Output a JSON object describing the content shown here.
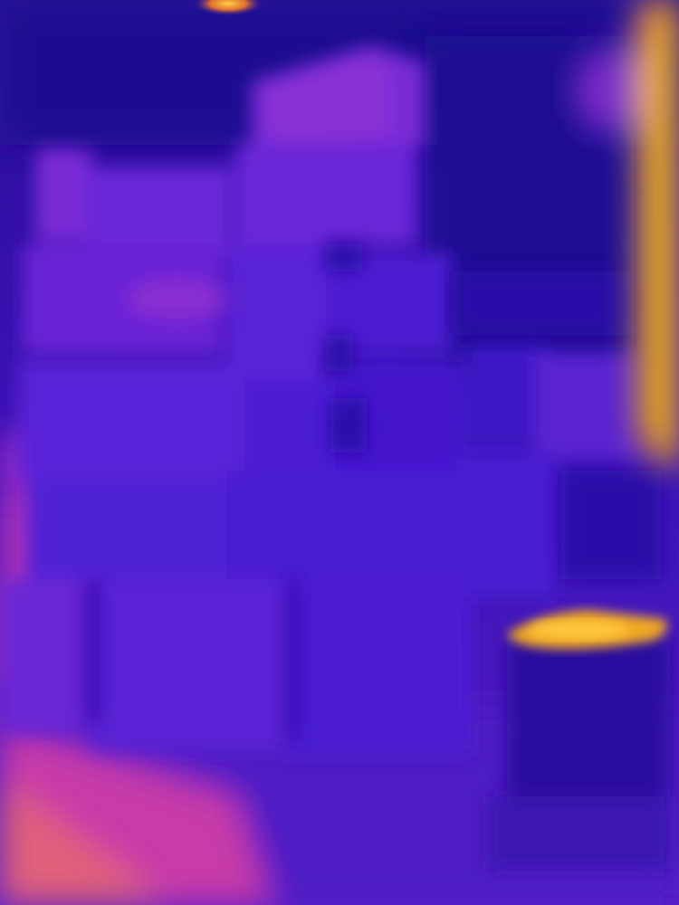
{
  "image": {
    "kind": "thermal-camera-photo",
    "palette": {
      "cold": "#1a0a8a",
      "cool": "#4a1ad0",
      "mid": "#6a2ad8",
      "warm": "#a030c8",
      "hot": "#e8a020",
      "hottest": "#f0b818"
    }
  }
}
